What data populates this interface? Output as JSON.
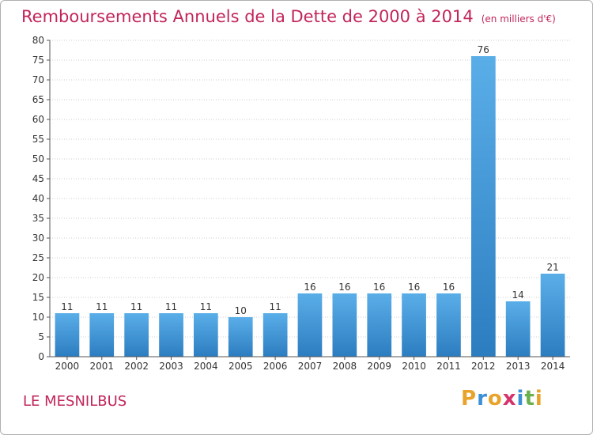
{
  "chart_data": {
    "type": "bar",
    "title": "Remboursements Annuels de la Dette de 2000 à 2014",
    "unit_note": "(en milliers d'€)",
    "xlabel": "",
    "ylabel": "",
    "categories": [
      "2000",
      "2001",
      "2002",
      "2003",
      "2004",
      "2005",
      "2006",
      "2007",
      "2008",
      "2009",
      "2010",
      "2011",
      "2012",
      "2013",
      "2014"
    ],
    "values": [
      11,
      11,
      11,
      11,
      11,
      10,
      11,
      16,
      16,
      16,
      16,
      16,
      76,
      14,
      21
    ],
    "ylim": [
      0,
      80
    ],
    "yticks": [
      0,
      5,
      10,
      15,
      20,
      25,
      30,
      35,
      40,
      45,
      50,
      55,
      60,
      65,
      70,
      75,
      80
    ],
    "grid": true,
    "colors": {
      "bar_top": "#5aaee8",
      "bar_bottom": "#2c7dc0",
      "grid": "#cccccc",
      "title": "#c2255c"
    }
  },
  "location": "LE MESNILBUS",
  "logo": {
    "letters": [
      "P",
      "r",
      "o",
      "x",
      "i",
      "t",
      "i"
    ],
    "colors": [
      "#e8a32a",
      "#3a8fd6",
      "#e8a32a",
      "#d6336c",
      "#3a8fd6",
      "#6ab04c",
      "#e8a32a"
    ]
  }
}
